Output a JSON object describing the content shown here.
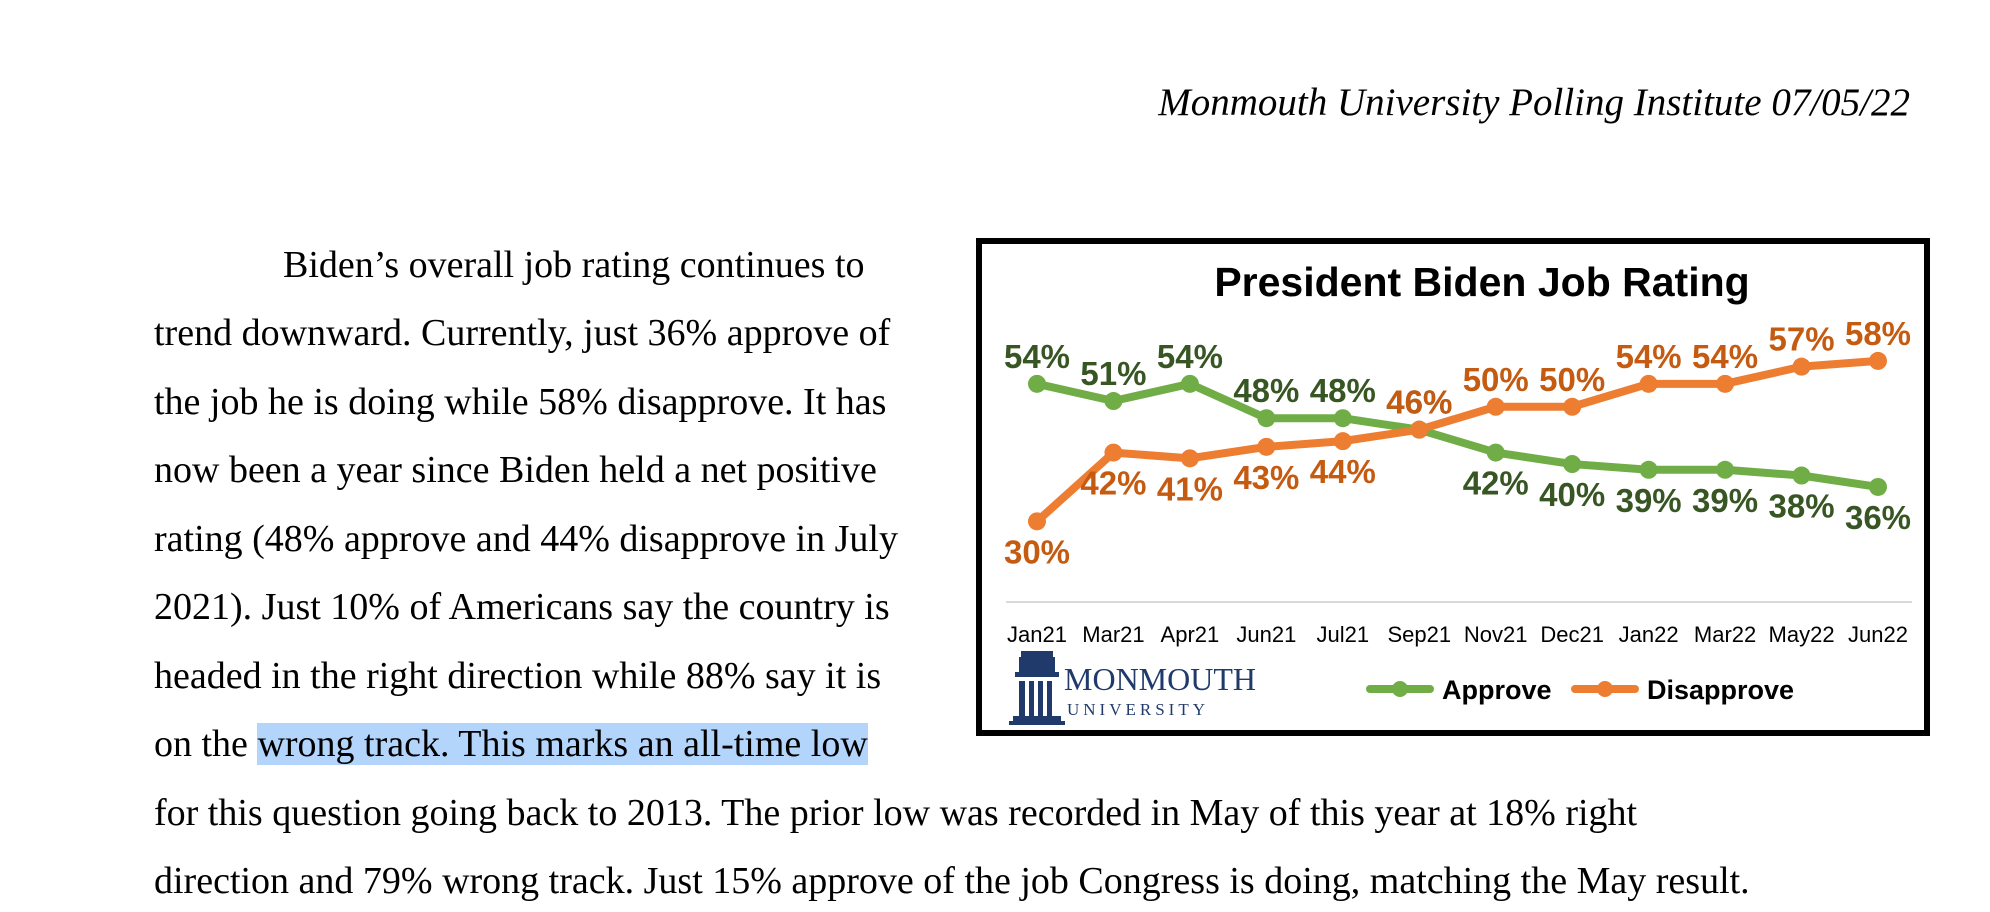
{
  "header": {
    "text": "Monmouth University Polling Institute 07/05/22"
  },
  "body_text": {
    "lines": [
      "Biden’s overall job rating continues to",
      "trend downward.  Currently, just 36% approve of",
      "the job he is doing while 58% disapprove. It has",
      "now been a year since Biden held a net positive",
      "rating (48% approve and 44% disapprove in July",
      "2021). Just 10% of Americans say the country is",
      "headed in the right direction while 88% say it is"
    ],
    "line8_prefix": "on the ",
    "line8_highlight": "wrong track. This marks an all-time low",
    "line9": "for this question going back to 2013. The prior low was recorded in May of this year at 18% right",
    "line10": "direction and 79% wrong track. Just 15% approve of the job Congress is doing, matching the May result."
  },
  "logo": {
    "name": "MONMOUTH",
    "sub": "UNIVERSITY"
  },
  "chart_data": {
    "type": "line",
    "title": "President Biden Job Rating",
    "categories": [
      "Jan21",
      "Mar21",
      "Apr21",
      "Jun21",
      "Jul21",
      "Sep21",
      "Nov21",
      "Dec21",
      "Jan22",
      "Mar22",
      "May22",
      "Jun22"
    ],
    "ylim": [
      25,
      62
    ],
    "grid": false,
    "legend_placement": "bottom-right",
    "series": [
      {
        "name": "Approve",
        "color": "#70ad47",
        "label_color": "#375623",
        "values": [
          54,
          51,
          54,
          48,
          48,
          46,
          42,
          40,
          39,
          39,
          38,
          36
        ],
        "labels": [
          "54%",
          "51%",
          "54%",
          "48%",
          "48%",
          "46%",
          "42%",
          "40%",
          "39%",
          "39%",
          "38%",
          "36%"
        ]
      },
      {
        "name": "Disapprove",
        "color": "#ed7d31",
        "label_color": "#c55a11",
        "values": [
          30,
          42,
          41,
          43,
          44,
          46,
          50,
          50,
          54,
          54,
          57,
          58
        ],
        "labels": [
          "30%",
          "42%",
          "41%",
          "43%",
          "44%",
          "46%",
          "50%",
          "50%",
          "54%",
          "54%",
          "57%",
          "58%"
        ]
      }
    ]
  }
}
